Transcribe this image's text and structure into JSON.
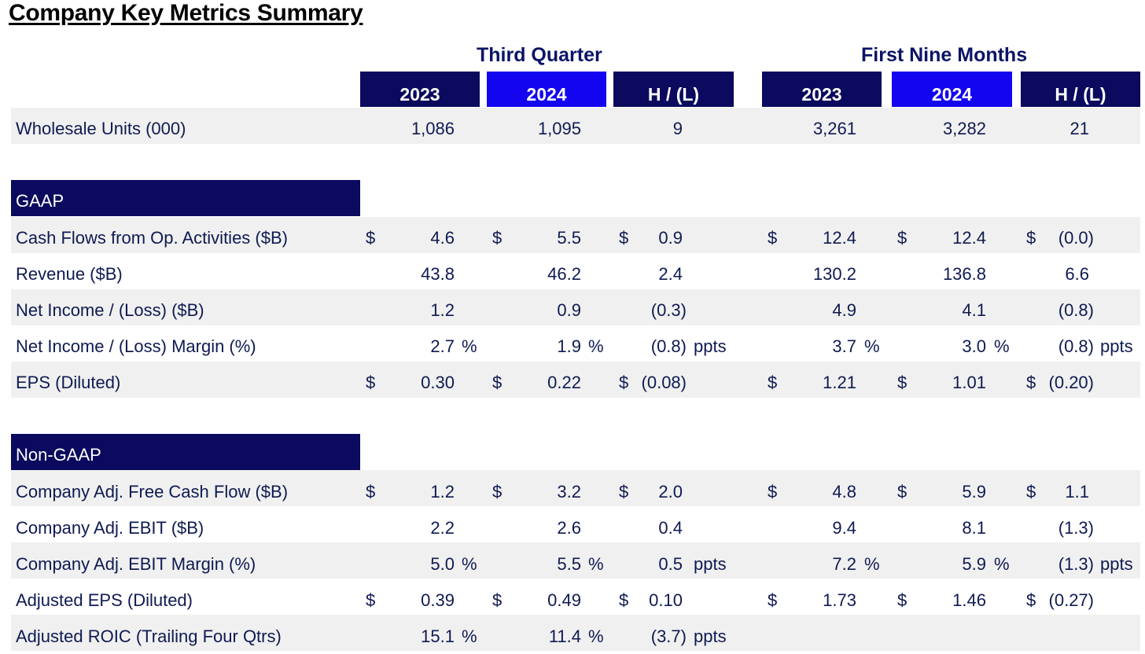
{
  "title": "Company Key Metrics Summary",
  "groups": {
    "third_quarter": "Third Quarter",
    "first_nine_months": "First Nine Months"
  },
  "headers": {
    "q_2023": "2023",
    "q_2024": "2024",
    "q_hl": "H / (L)",
    "n_2023": "2023",
    "n_2024": "2024",
    "n_hl": "H / (L)"
  },
  "sections": {
    "gaap": "GAAP",
    "non_gaap": "Non-GAAP"
  },
  "rows": {
    "wholesale": {
      "label": "Wholesale Units (000)",
      "q23": "1,086",
      "q24": "1,095",
      "qhl": "9",
      "n23": "3,261",
      "n24": "3,282",
      "nhl": "21"
    },
    "cash_flows": {
      "label": "Cash Flows from Op. Activities ($B)",
      "q23": "4.6",
      "q24": "5.5",
      "qhl": "0.9",
      "n23": "12.4",
      "n24": "12.4",
      "nhl": "(0.0)"
    },
    "revenue": {
      "label": "Revenue ($B)",
      "q23": "43.8",
      "q24": "46.2",
      "qhl": "2.4",
      "n23": "130.2",
      "n24": "136.8",
      "nhl": "6.6"
    },
    "net_income": {
      "label": "Net Income / (Loss) ($B)",
      "q23": "1.2",
      "q24": "0.9",
      "qhl": "(0.3)",
      "n23": "4.9",
      "n24": "4.1",
      "nhl": "(0.8)"
    },
    "ni_margin": {
      "label": "Net Income / (Loss) Margin (%)",
      "q23": "2.7",
      "q24": "1.9",
      "qhl": "(0.8)",
      "n23": "3.7",
      "n24": "3.0",
      "nhl": "(0.8)"
    },
    "eps": {
      "label": "EPS (Diluted)",
      "q23": "0.30",
      "q24": "0.22",
      "qhl": "(0.08)",
      "n23": "1.21",
      "n24": "1.01",
      "nhl": "(0.20)"
    },
    "adj_fcf": {
      "label": "Company Adj. Free Cash Flow ($B)",
      "q23": "1.2",
      "q24": "3.2",
      "qhl": "2.0",
      "n23": "4.8",
      "n24": "5.9",
      "nhl": "1.1"
    },
    "adj_ebit": {
      "label": "Company Adj. EBIT ($B)",
      "q23": "2.2",
      "q24": "2.6",
      "qhl": "0.4",
      "n23": "9.4",
      "n24": "8.1",
      "nhl": "(1.3)"
    },
    "adj_ebit_margin": {
      "label": "Company Adj. EBIT Margin (%)",
      "q23": "5.0",
      "q24": "5.5",
      "qhl": "0.5",
      "n23": "7.2",
      "n24": "5.9",
      "nhl": "(1.3)"
    },
    "adj_eps": {
      "label": "Adjusted EPS (Diluted)",
      "q23": "0.39",
      "q24": "0.49",
      "qhl": "0.10",
      "n23": "1.73",
      "n24": "1.46",
      "nhl": "(0.27)"
    },
    "adj_roic": {
      "label": "Adjusted ROIC (Trailing Four Qtrs)",
      "q23": "15.1",
      "q24": "11.4",
      "qhl": "(3.7)"
    }
  },
  "symbols": {
    "dollar": "$",
    "percent": "%",
    "ppts": "ppts"
  },
  "colors": {
    "header_dark": "#0b0a5e",
    "header_bright": "#1405f0",
    "text": "#0f1a52",
    "band": "#f0f0f0"
  }
}
